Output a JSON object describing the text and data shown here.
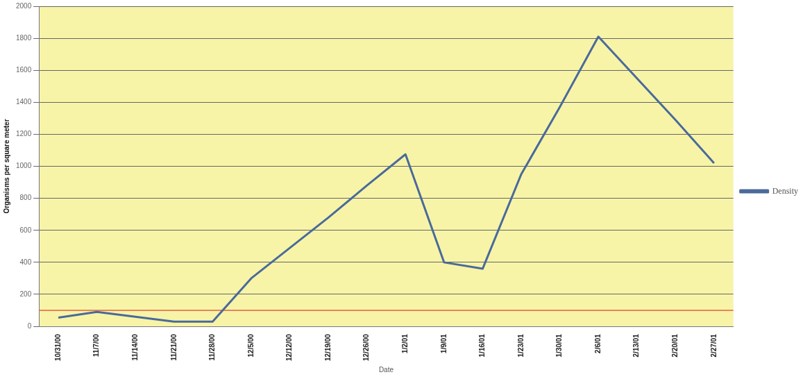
{
  "chart_data": {
    "type": "line",
    "xlabel": "Date",
    "ylabel": "Organisms per square meter",
    "categories": [
      "10/31/00",
      "11/7/00",
      "11/14/00",
      "11/21/00",
      "11/28/00",
      "12/5/00",
      "12/12/00",
      "12/19/00",
      "12/26/00",
      "1/2/01",
      "1/9/01",
      "1/16/01",
      "1/23/01",
      "1/30/01",
      "2/6/01",
      "2/13/01",
      "2/20/01",
      "2/27/01"
    ],
    "series": [
      {
        "name": "Density",
        "color": "#4a6a9a",
        "values": [
          55,
          90,
          60,
          30,
          30,
          300,
          490,
          680,
          880,
          1075,
          400,
          360,
          950,
          1370,
          1810,
          1550,
          1290,
          1020
        ]
      }
    ],
    "ylim": [
      0,
      2000
    ],
    "yticks": [
      0,
      200,
      400,
      600,
      800,
      1000,
      1200,
      1400,
      1600,
      1800,
      2000
    ],
    "ref_lines": [
      {
        "axis": "y",
        "value": 100,
        "color": "#e0603a"
      }
    ],
    "grid": "y",
    "legend": "right",
    "marker": "none",
    "line_style": "solid"
  }
}
